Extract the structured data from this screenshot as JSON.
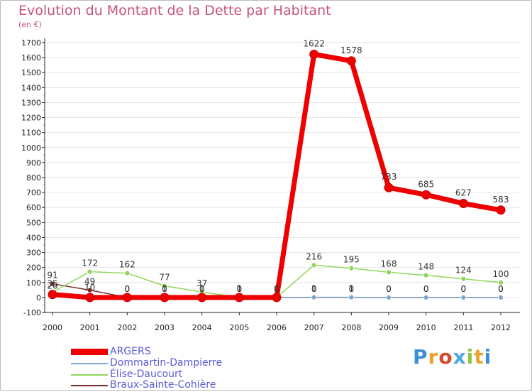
{
  "chart_data": {
    "type": "line",
    "title": "Evolution du Montant de la Dette par Habitant",
    "unit_label": "(en €)",
    "xlabel": "",
    "ylabel": "",
    "x": [
      "2000",
      "2001",
      "2002",
      "2003",
      "2004",
      "2005",
      "2006",
      "2007",
      "2008",
      "2009",
      "2010",
      "2011",
      "2012"
    ],
    "ylim": [
      -100,
      1700
    ],
    "yticks": [
      -100,
      0,
      100,
      200,
      300,
      400,
      500,
      600,
      700,
      800,
      900,
      1000,
      1100,
      1200,
      1300,
      1400,
      1500,
      1600,
      1700
    ],
    "series": [
      {
        "name": "Braux-Sainte-Cohière",
        "color": "#7a2a2a",
        "values": [
          91,
          49,
          0,
          0,
          0,
          0,
          0,
          0,
          0,
          0,
          0,
          0,
          0
        ],
        "labels": [
          "91",
          "49",
          "0",
          "0",
          "0",
          "0",
          "0",
          "0",
          "0",
          "0",
          "0",
          "0",
          "0"
        ]
      },
      {
        "name": "Élise-Daucourt",
        "color": "#8fd65a",
        "values": [
          35,
          172,
          162,
          77,
          37,
          0,
          0,
          216,
          195,
          168,
          148,
          124,
          100
        ],
        "labels": [
          "35",
          "172",
          "162",
          "77",
          "37",
          "0",
          "0",
          "216",
          "195",
          "168",
          "148",
          "124",
          "100"
        ]
      },
      {
        "name": "Dommartin-Dampierre",
        "color": "#7ba7d0",
        "values": [
          20,
          10,
          0,
          1,
          1,
          1,
          0,
          1,
          1,
          0,
          0,
          0,
          0
        ],
        "labels": [
          "20",
          "10",
          "0",
          "1",
          "1",
          "1",
          "0",
          "1",
          "1",
          "0",
          "0",
          "0",
          "0"
        ]
      },
      {
        "name": "ARGERS",
        "color": "#ee0000",
        "values": [
          20,
          0,
          0,
          0,
          0,
          0,
          0,
          1622,
          1578,
          733,
          685,
          627,
          583
        ],
        "labels": [
          "",
          "",
          "",
          "",
          "",
          "",
          "",
          "1622",
          "1578",
          "733",
          "685",
          "627",
          "583"
        ]
      }
    ],
    "legend": [
      "ARGERS",
      "Dommartin-Dampierre",
      "Élise-Daucourt",
      "Braux-Sainte-Cohière"
    ],
    "legend_position": "bottom-left"
  },
  "legend_items": [
    {
      "label": "ARGERS",
      "color": "#ee0000",
      "text_color": "#5b5bd6"
    },
    {
      "label": "Dommartin-Dampierre",
      "color": "#7ba7d0",
      "text_color": "#5b5bd6"
    },
    {
      "label": "Élise-Daucourt",
      "color": "#8fd65a",
      "text_color": "#5b5bd6"
    },
    {
      "label": "Braux-Sainte-Cohière",
      "color": "#7a2a2a",
      "text_color": "#5b5bd6"
    }
  ],
  "brand": {
    "text": "Proxiti"
  }
}
